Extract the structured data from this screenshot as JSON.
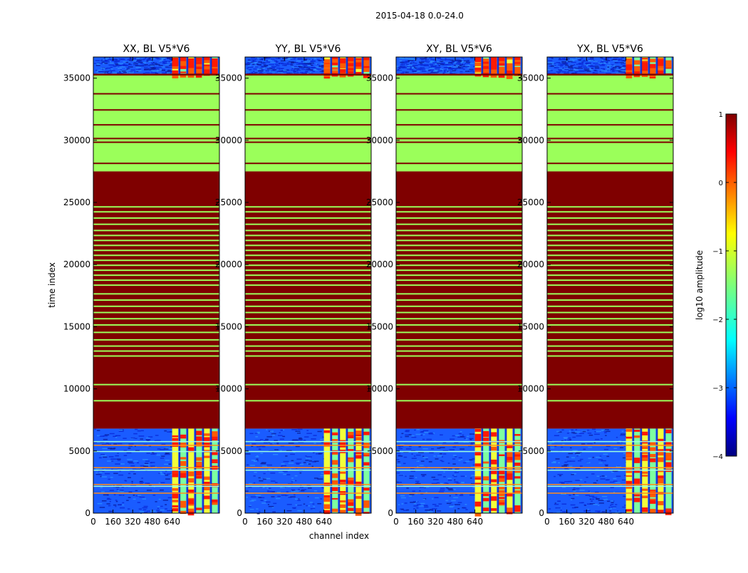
{
  "figure": {
    "suptitle": "2015-04-18 0.0-24.0",
    "xlabel": "channel index",
    "ylabel": "time index"
  },
  "chart_data": {
    "type": "heatmap",
    "colormap": "jet",
    "x_tick_values": [
      0,
      160,
      320,
      480,
      640
    ],
    "x_tick_labels": [
      "0",
      "160",
      "320",
      "480",
      "640"
    ],
    "y_tick_values": [
      0,
      5000,
      10000,
      15000,
      20000,
      25000,
      30000,
      35000
    ],
    "y_tick_labels": [
      "0",
      "5000",
      "10000",
      "15000",
      "20000",
      "25000",
      "30000",
      "35000"
    ],
    "xlim": [
      0,
      1024
    ],
    "ylim": [
      0,
      36700
    ],
    "panels": [
      {
        "title": "XX, BL V5*V6"
      },
      {
        "title": "YY, BL V5*V6"
      },
      {
        "title": "XY, BL V5*V6"
      },
      {
        "title": "YX, BL V5*V6"
      }
    ],
    "regions": [
      {
        "name": "noise-low",
        "y0": 0,
        "y1": 6800,
        "log10_amp": -3.0
      },
      {
        "name": "saturated",
        "y0": 6800,
        "y1": 27500,
        "log10_amp": 1.0
      },
      {
        "name": "green-band",
        "y0": 27500,
        "y1": 35300,
        "log10_amp": -1.2
      },
      {
        "name": "noise-high",
        "y0": 35300,
        "y1": 36700,
        "log10_amp": -3.0
      }
    ],
    "signal_channel_range": [
      640,
      1024
    ],
    "colorbar": {
      "label": "log10 amplitude",
      "min": -4,
      "max": 1,
      "ticks": [
        1,
        0,
        -1,
        -2,
        -3,
        -4
      ],
      "tick_labels": [
        "1",
        "0",
        "−1",
        "−2",
        "−3",
        "−4"
      ]
    }
  },
  "colors": {
    "saturated": "#7f0000",
    "green": "#9bff5a",
    "noise_base": "#1a5cff"
  }
}
